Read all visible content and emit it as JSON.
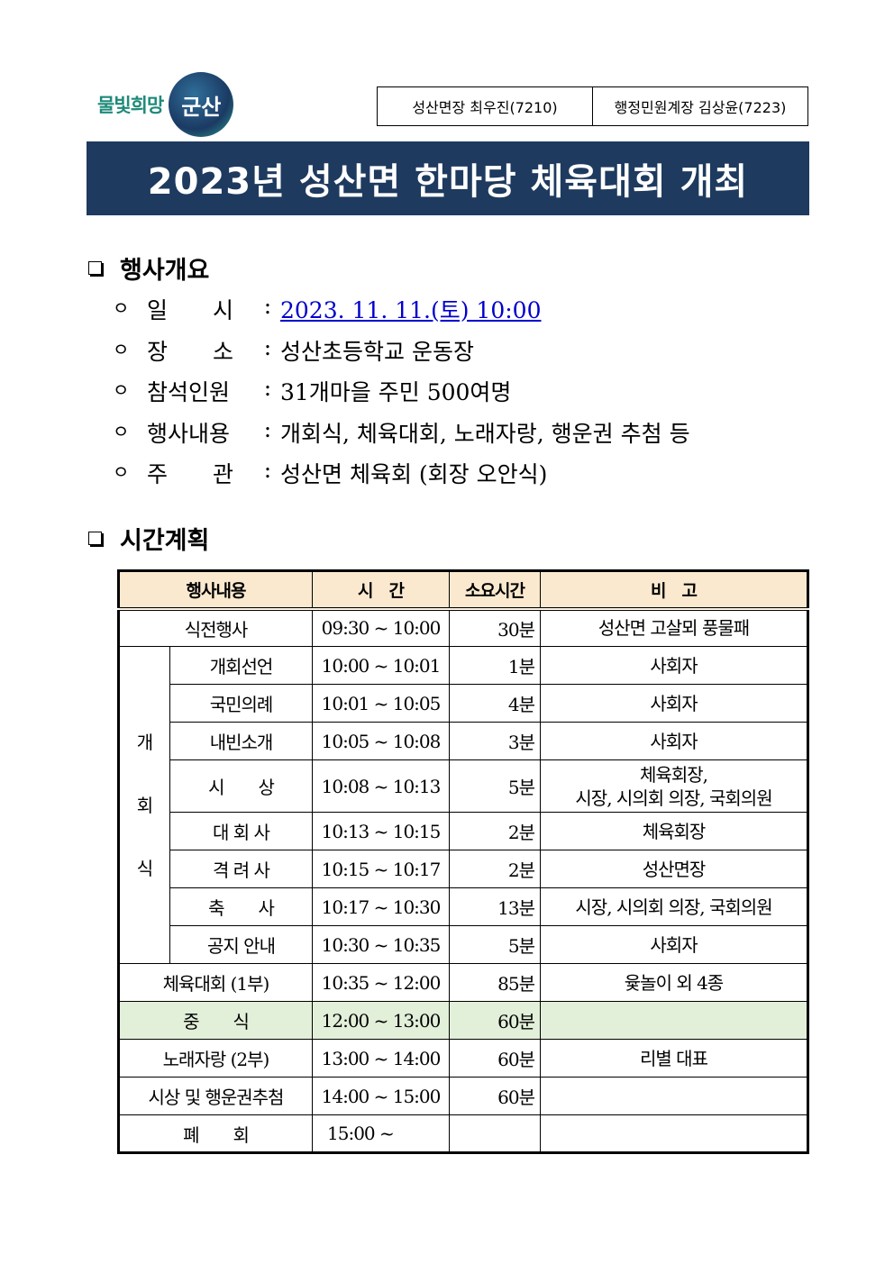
{
  "logo": {
    "text": "물빛희망",
    "mark": "군산"
  },
  "contacts": [
    "성산면장 최우진(7210)",
    "행정민원계장 김상윤(7223)"
  ],
  "title": "2023년 성산면 한마당 체육대회 개최",
  "overview": {
    "heading": "행사개요",
    "items": [
      {
        "label": "일　　시",
        "value": "2023. 11. 11.(토) 10:00",
        "link": true
      },
      {
        "label": "장　　소",
        "value": "성산초등학교 운동장"
      },
      {
        "label": "참석인원",
        "value": "31개마을 주민 500여명"
      },
      {
        "label": "행사내용",
        "value": "개회식, 체육대회, 노래자랑, 행운권 추첨 등"
      },
      {
        "label": "주　　관",
        "value": "성산면 체육회 (회장 오안식)"
      }
    ]
  },
  "schedule": {
    "heading": "시간계획",
    "headers": [
      "행사내용",
      "시　간",
      "소요시간",
      "비　고"
    ],
    "group_label": "개 회 식",
    "rows": [
      {
        "event": "식전행사",
        "time": "09:30 ~ 10:00",
        "dur": "30분",
        "note": "성산면 고살뫼 풍물패"
      },
      {
        "event": "개회선언",
        "time": "10:00 ~ 10:01",
        "dur": "1분",
        "note": "사회자",
        "group": true
      },
      {
        "event": "국민의례",
        "time": "10:01 ~ 10:05",
        "dur": "4분",
        "note": "사회자",
        "group": true
      },
      {
        "event": "내빈소개",
        "time": "10:05 ~ 10:08",
        "dur": "3분",
        "note": "사회자",
        "group": true
      },
      {
        "event": "시　　상",
        "time": "10:08 ~ 10:13",
        "dur": "5분",
        "note": "체육회장,\n시장, 시의회 의장, 국회의원",
        "group": true
      },
      {
        "event": "대 회 사",
        "time": "10:13 ~ 10:15",
        "dur": "2분",
        "note": "체육회장",
        "group": true
      },
      {
        "event": "격 려 사",
        "time": "10:15 ~ 10:17",
        "dur": "2분",
        "note": "성산면장",
        "group": true
      },
      {
        "event": "축　　사",
        "time": "10:17 ~ 10:30",
        "dur": "13분",
        "note": "시장, 시의회 의장, 국회의원",
        "group": true
      },
      {
        "event": "공지 안내",
        "time": "10:30 ~ 10:35",
        "dur": "5분",
        "note": "사회자",
        "group": true
      },
      {
        "event": "체육대회 (1부)",
        "time": "10:35 ~ 12:00",
        "dur": "85분",
        "note": "윷놀이 외 4종"
      },
      {
        "event": "중　　식",
        "time": "12:00 ~ 13:00",
        "dur": "60분",
        "note": "",
        "highlight": "#e2efd9"
      },
      {
        "event": "노래자랑 (2부)",
        "time": "13:00 ~ 14:00",
        "dur": "60분",
        "note": "리별 대표"
      },
      {
        "event": "시상 및 행운권추첨",
        "time": "14:00 ~ 15:00",
        "dur": "60분",
        "note": ""
      },
      {
        "event": "폐　　회",
        "time": "15:00 ~",
        "dur": "",
        "note": ""
      }
    ]
  },
  "colors": {
    "title_bg": "#1e3a5f",
    "header_bg": "#fbe9cf",
    "lunch_bg": "#e2efd9",
    "link": "#0000cc"
  }
}
